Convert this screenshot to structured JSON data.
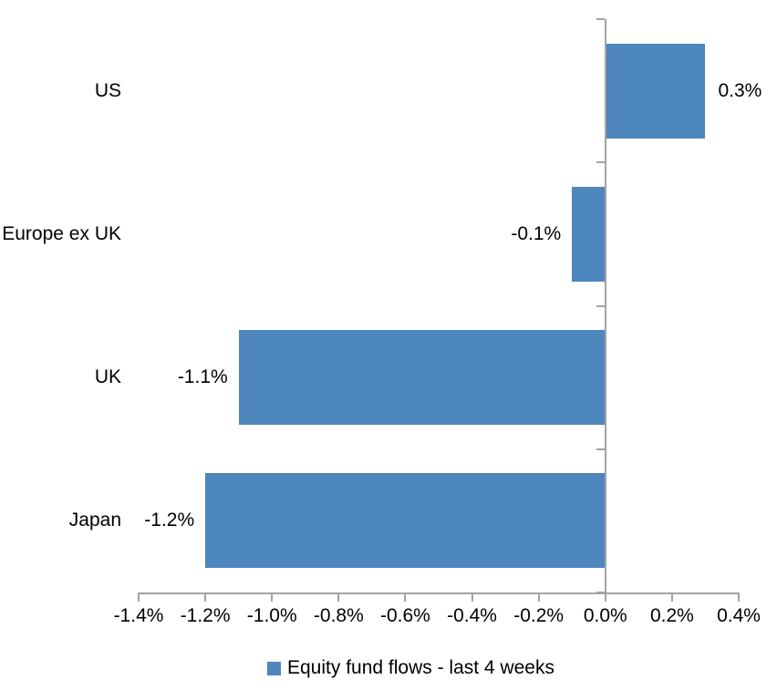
{
  "chart_data": {
    "type": "bar",
    "orientation": "horizontal",
    "title": "",
    "xlabel": "",
    "ylabel": "",
    "categories": [
      "US",
      "Europe ex UK",
      "UK",
      "Japan"
    ],
    "series": [
      {
        "name": "Equity fund flows - last 4 weeks",
        "values": [
          0.3,
          -0.1,
          -1.1,
          -1.2
        ],
        "data_labels": [
          "0.3%",
          "-0.1%",
          "-1.1%",
          "-1.2%"
        ]
      }
    ],
    "xlim": [
      -1.4,
      0.4
    ],
    "x_tick_values": [
      -1.4,
      -1.2,
      -1.0,
      -0.8,
      -0.6,
      -0.4,
      -0.2,
      0.0,
      0.2,
      0.4
    ],
    "x_tick_labels": [
      "-1.4%",
      "-1.2%",
      "-1.0%",
      "-0.8%",
      "-0.6%",
      "-0.4%",
      "-0.2%",
      "0.0%",
      "0.2%",
      "0.4%"
    ],
    "grid": false,
    "legend": {
      "position": "bottom",
      "entries": [
        "Equity fund flows - last 4 weeks"
      ]
    },
    "colors": {
      "bar": "#4E86BE",
      "axis": "#A3A3A3",
      "text": "#000000",
      "background": "#FFFFFF"
    }
  }
}
